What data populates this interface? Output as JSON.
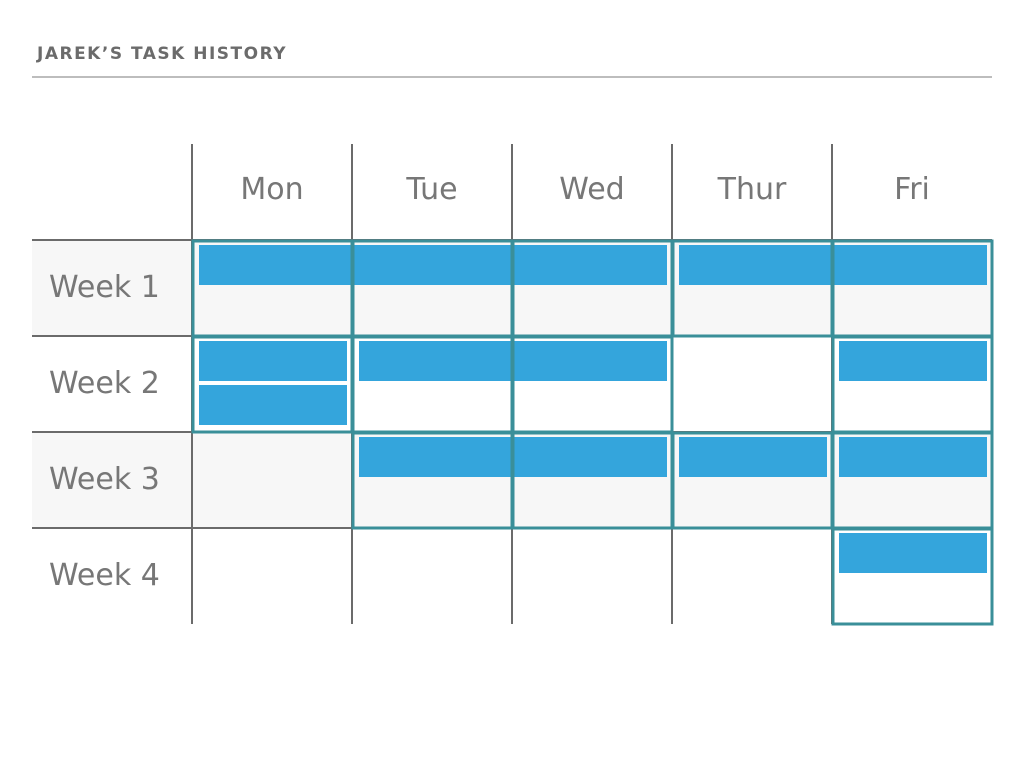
{
  "header": {
    "title": "JAREK’S TASK HISTORY"
  },
  "colors": {
    "task_fill": "#34a5dc",
    "block_outline": "#3a8f99",
    "grid_line": "#6b6b6b",
    "stripe_row": "#f7f7f7",
    "header_rule": "#bdbdbd",
    "text": "#777777"
  },
  "days": [
    "Mon",
    "Tue",
    "Wed",
    "Thur",
    "Fri"
  ],
  "weeks": [
    "Week 1",
    "Week 2",
    "Week 3",
    "Week 4"
  ],
  "tasks": [
    {
      "week": 0,
      "start_day": 0,
      "end_day": 2,
      "lane": 0
    },
    {
      "week": 0,
      "start_day": 3,
      "end_day": 4,
      "lane": 0
    },
    {
      "week": 1,
      "start_day": 0,
      "end_day": 0,
      "lane": 0
    },
    {
      "week": 1,
      "start_day": 0,
      "end_day": 0,
      "lane": 1
    },
    {
      "week": 1,
      "start_day": 1,
      "end_day": 2,
      "lane": 0
    },
    {
      "week": 1,
      "start_day": 4,
      "end_day": 4,
      "lane": 0
    },
    {
      "week": 2,
      "start_day": 1,
      "end_day": 2,
      "lane": 0
    },
    {
      "week": 2,
      "start_day": 3,
      "end_day": 3,
      "lane": 0
    },
    {
      "week": 2,
      "start_day": 4,
      "end_day": 4,
      "lane": 0
    },
    {
      "week": 3,
      "start_day": 4,
      "end_day": 4,
      "lane": 0
    }
  ],
  "blocks": [
    {
      "week": 0,
      "day": 0
    },
    {
      "week": 0,
      "day": 1
    },
    {
      "week": 0,
      "day": 2
    },
    {
      "week": 0,
      "day": 3
    },
    {
      "week": 0,
      "day": 4
    },
    {
      "week": 1,
      "day": 0
    },
    {
      "week": 1,
      "day": 1
    },
    {
      "week": 1,
      "day": 2
    },
    {
      "week": 1,
      "day": 4
    },
    {
      "week": 2,
      "day": 1
    },
    {
      "week": 2,
      "day": 2
    },
    {
      "week": 2,
      "day": 3
    },
    {
      "week": 2,
      "day": 4
    },
    {
      "week": 3,
      "day": 4
    }
  ],
  "striped_weeks": [
    0,
    2
  ]
}
